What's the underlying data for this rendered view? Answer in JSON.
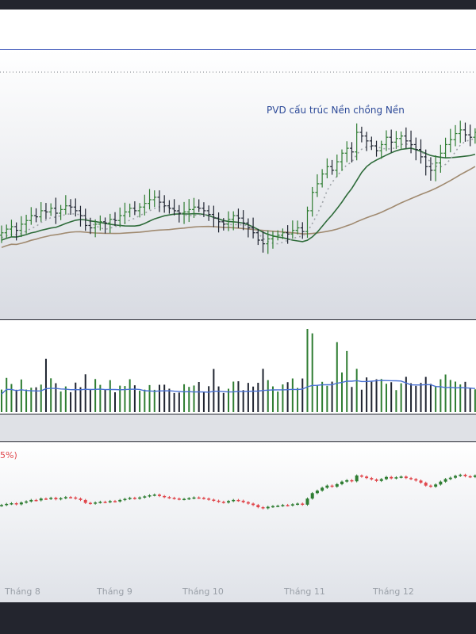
{
  "annotation": "PVD cấu trúc Nền chồng Nền",
  "bottom_panel_label": "5%)",
  "months": [
    "Tháng 8",
    "Tháng 9",
    "Tháng 10",
    "Tháng 11",
    "Tháng 12"
  ],
  "colors": {
    "up": "#2f7d32",
    "down": "#1f2430",
    "ma_fast": "#9ea3a8",
    "ma_mid": "#2e6b3a",
    "ma_slow": "#a08a70",
    "vol_ma": "#4a72d4",
    "candle_up": "#2e7d32",
    "candle_down": "#e0474c",
    "annotation": "#2e4b99",
    "label_red": "#e0474c"
  },
  "chart_data": {
    "type": "ohlc",
    "annotation": "PVD cấu trúc Nền chồng Nền",
    "x_tick_labels": [
      "Tháng 8",
      "Tháng 9",
      "Tháng 10",
      "Tháng 11",
      "Tháng 12"
    ],
    "price_close": [
      22.2,
      22.5,
      22.7,
      22.4,
      22.9,
      23.2,
      23.6,
      23.5,
      24.0,
      23.9,
      24.2,
      23.8,
      24.1,
      24.4,
      24.3,
      24.0,
      23.6,
      22.8,
      22.6,
      22.9,
      23.1,
      23.0,
      23.3,
      23.2,
      23.6,
      23.9,
      24.2,
      24.0,
      24.3,
      24.6,
      24.9,
      25.1,
      24.7,
      24.4,
      24.2,
      24.0,
      23.8,
      23.9,
      24.1,
      24.3,
      24.2,
      24.0,
      23.7,
      23.4,
      23.1,
      22.9,
      23.3,
      23.6,
      23.4,
      23.0,
      22.6,
      22.2,
      21.6,
      21.3,
      21.7,
      21.9,
      22.0,
      22.2,
      22.1,
      22.4,
      22.6,
      22.3,
      24.0,
      25.5,
      26.2,
      27.0,
      27.6,
      27.3,
      28.0,
      28.7,
      29.1,
      28.8,
      30.4,
      30.1,
      29.7,
      29.3,
      28.9,
      29.4,
      30.0,
      29.6,
      29.9,
      30.1,
      29.7,
      29.4,
      29.0,
      28.4,
      27.6,
      27.3,
      27.9,
      28.7,
      29.4,
      29.8,
      30.3,
      30.6,
      30.2,
      30.0,
      30.4
    ],
    "price_range_approx": [
      20.5,
      31.5
    ],
    "moving_averages": [
      "fast (dotted)",
      "medium",
      "slow"
    ],
    "volume_note": "bars green on up days, black on down days with a blue volume moving average",
    "bottom_panel": "candlestick comparison series, red = down, green = up"
  }
}
